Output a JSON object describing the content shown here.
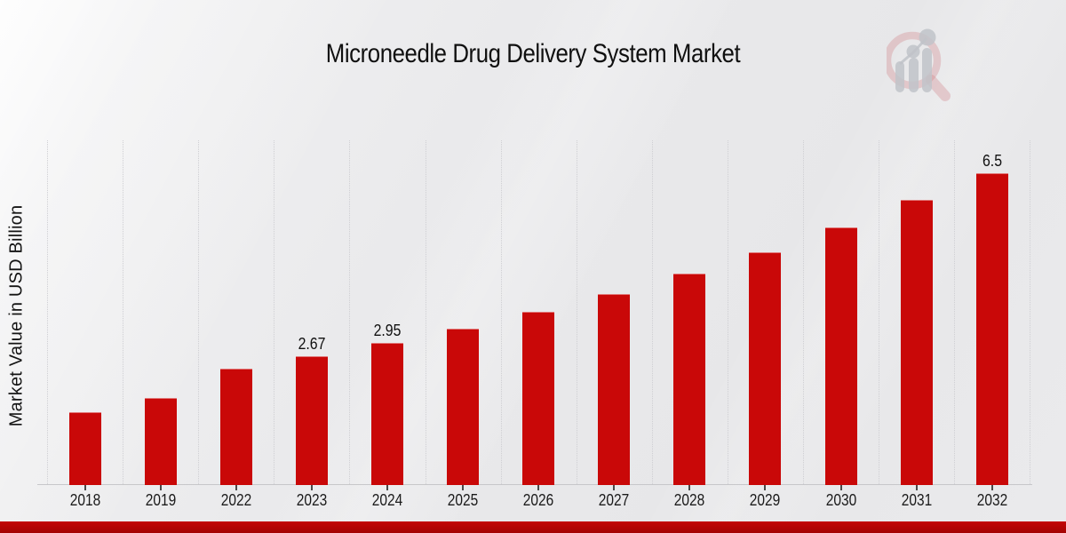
{
  "header": {
    "title": "Microneedle Drug Delivery System Market"
  },
  "chart_data": {
    "type": "bar",
    "title": "Microneedle Drug Delivery System Market",
    "xlabel": "",
    "ylabel": "Market Value in USD Billion",
    "categories": [
      "2018",
      "2019",
      "2022",
      "2023",
      "2024",
      "2025",
      "2026",
      "2027",
      "2028",
      "2029",
      "2030",
      "2031",
      "2032"
    ],
    "values": [
      1.5,
      1.8,
      2.42,
      2.67,
      2.95,
      3.26,
      3.6,
      3.98,
      4.4,
      4.86,
      5.37,
      5.94,
      6.5
    ],
    "data_labels": [
      "",
      "",
      "",
      "2.67",
      "2.95",
      "",
      "",
      "",
      "",
      "",
      "",
      "",
      "6.5"
    ],
    "ylim": [
      0,
      7.2
    ],
    "grid": "vertical-dotted",
    "legend": "none",
    "bar_color": "#c90808"
  },
  "colors": {
    "bar": "#c90808",
    "footer": "#b10404",
    "background": "#eaeaec",
    "gridline": "#cfcfd3",
    "text": "#101010"
  },
  "branding": {
    "logo": "magnifier-bar-chart watermark"
  }
}
